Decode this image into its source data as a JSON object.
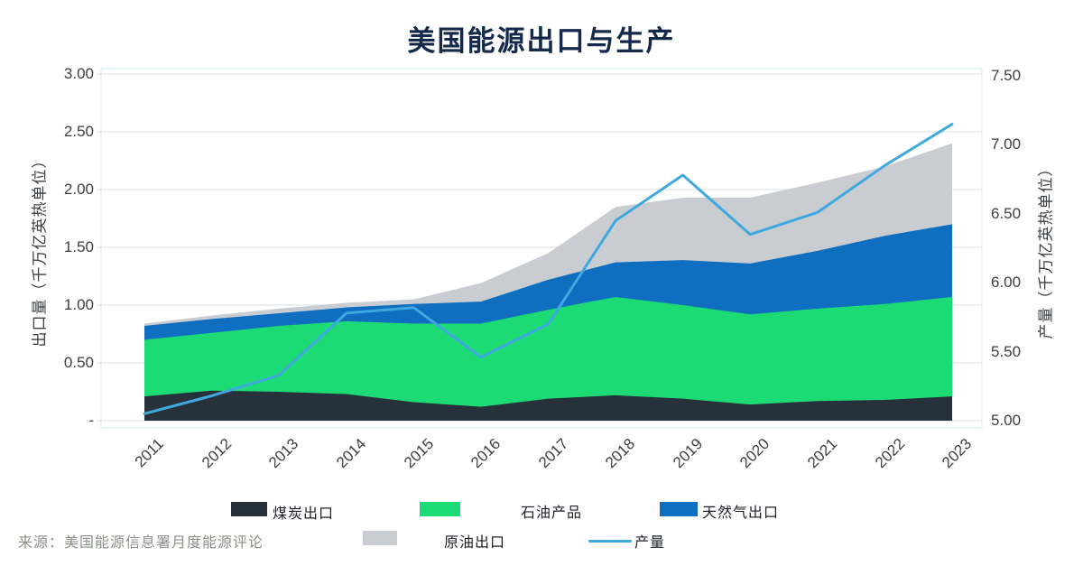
{
  "chart_data": {
    "type": "area",
    "title": "美国能源出口与生产",
    "source": "来源：美国能源信息署月度能源评论",
    "categories": [
      "2011",
      "2012",
      "2013",
      "2014",
      "2015",
      "2016",
      "2017",
      "2018",
      "2019",
      "2020",
      "2021",
      "2022",
      "2023"
    ],
    "series": [
      {
        "name": "煤炭出口",
        "kind": "stacked_area",
        "axis": "left",
        "color": "#27313b",
        "values": [
          0.21,
          0.26,
          0.25,
          0.23,
          0.16,
          0.12,
          0.19,
          0.22,
          0.19,
          0.14,
          0.17,
          0.18,
          0.21
        ]
      },
      {
        "name": "石油产品",
        "kind": "stacked_area",
        "axis": "left",
        "color": "#1ddb74",
        "values": [
          0.49,
          0.5,
          0.57,
          0.63,
          0.68,
          0.72,
          0.77,
          0.85,
          0.81,
          0.78,
          0.8,
          0.83,
          0.86
        ]
      },
      {
        "name": "天然气出口",
        "kind": "stacked_area",
        "axis": "left",
        "color": "#0f6ec0",
        "values": [
          0.12,
          0.12,
          0.11,
          0.12,
          0.17,
          0.19,
          0.26,
          0.3,
          0.39,
          0.44,
          0.5,
          0.59,
          0.63
        ]
      },
      {
        "name": "原油出口",
        "kind": "stacked_area",
        "axis": "left",
        "color": "#c9cdd2",
        "values": [
          0.02,
          0.03,
          0.04,
          0.04,
          0.04,
          0.16,
          0.23,
          0.48,
          0.54,
          0.57,
          0.59,
          0.6,
          0.7
        ]
      },
      {
        "name": "产量",
        "kind": "line",
        "axis": "right",
        "color": "#3fa9df",
        "values": [
          5.05,
          5.18,
          5.33,
          5.78,
          5.82,
          5.46,
          5.7,
          6.45,
          6.78,
          6.35,
          6.51,
          6.85,
          7.15
        ]
      }
    ],
    "left_axis": {
      "label": "出口量（千万亿英热单位）",
      "min": 0,
      "max": 3.0,
      "ticks": [
        "3.00",
        "2.50",
        "2.00",
        "1.50",
        "1.00",
        "0.50",
        "-"
      ]
    },
    "right_axis": {
      "label": "产量（千万亿英热单位）",
      "min": 5.0,
      "max": 7.5,
      "ticks": [
        "7.50",
        "7.00",
        "6.50",
        "6.00",
        "5.50",
        "5.00"
      ]
    },
    "grid": true,
    "legend_position": "bottom",
    "colors": {
      "title_text": "#15294b",
      "axis_text": "#3c4043",
      "legend_text": "#1d2126",
      "source_text": "#8a9185",
      "gridline": "#e7e9ea",
      "plot_border": "#d9e8f2"
    }
  }
}
